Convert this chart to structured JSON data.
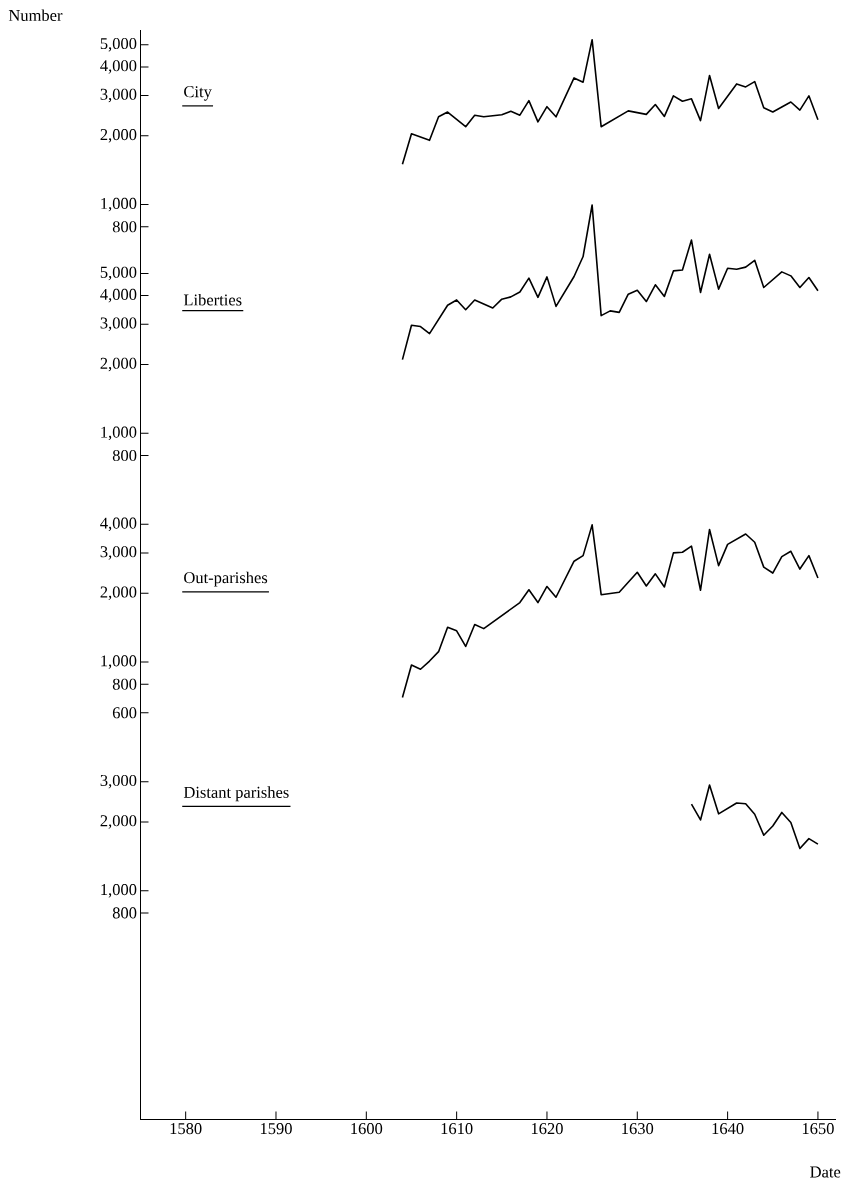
{
  "chart_data": [
    {
      "type": "line",
      "ylabel": "Number",
      "xlim": [
        1575,
        1652
      ],
      "ylim": [
        0.1,
        5800
      ],
      "log": "y",
      "tick_labels": "y",
      "line_style": "solid",
      "yticks": [
        {
          "value": 5000,
          "label": "5,000"
        },
        {
          "value": 4000,
          "label": "4,000"
        },
        {
          "value": 3000,
          "label": "3,000"
        },
        {
          "value": 2000,
          "label": "2,000"
        },
        {
          "value": 1000,
          "label": "1,000"
        },
        {
          "value": 800,
          "label": "800"
        }
      ],
      "x": [
        1604,
        1605,
        1607,
        1608,
        1609,
        1611,
        1612,
        1613,
        1615,
        1616,
        1617,
        1618,
        1619,
        1620,
        1621,
        1623,
        1624,
        1625,
        1626,
        1629,
        1631,
        1632,
        1633,
        1634,
        1635,
        1636,
        1637,
        1638,
        1639,
        1641,
        1642,
        1643,
        1644,
        1645,
        1647,
        1648,
        1649,
        1650
      ],
      "series": [
        {
          "name": "City",
          "color": "#000000",
          "values": [
            1500,
            2040,
            1910,
            2420,
            2540,
            2190,
            2460,
            2420,
            2470,
            2560,
            2460,
            2850,
            2300,
            2680,
            2420,
            3580,
            3430,
            5260,
            2190,
            2570,
            2480,
            2740,
            2430,
            2990,
            2830,
            2900,
            2330,
            3670,
            2630,
            3370,
            3270,
            3450,
            2650,
            2540,
            2810,
            2590,
            2990,
            2350
          ]
        }
      ]
    },
    {
      "type": "line",
      "xlim": [
        1575,
        1652
      ],
      "ylim": [
        1,
        58000
      ],
      "log": "y",
      "tick_labels": "y",
      "line_style": "solid",
      "yticks": [
        {
          "value": 5000,
          "label": "5,000"
        },
        {
          "value": 4000,
          "label": "4,000"
        },
        {
          "value": 3000,
          "label": "3,000"
        },
        {
          "value": 2000,
          "label": "2,000"
        },
        {
          "value": 1000,
          "label": "1,000"
        },
        {
          "value": 800,
          "label": "800"
        }
      ],
      "x": [
        1604,
        1605,
        1606,
        1607,
        1609,
        1610,
        1611,
        1612,
        1614,
        1615,
        1616,
        1617,
        1618,
        1619,
        1620,
        1621,
        1623,
        1624,
        1625,
        1626,
        1627,
        1628,
        1629,
        1630,
        1631,
        1632,
        1633,
        1634,
        1635,
        1636,
        1637,
        1638,
        1639,
        1640,
        1641,
        1642,
        1643,
        1644,
        1646,
        1647,
        1648,
        1649,
        1650
      ],
      "series": [
        {
          "name": "Liberties",
          "color": "#000000",
          "values": [
            2100,
            2970,
            2930,
            2730,
            3630,
            3830,
            3470,
            3830,
            3530,
            3860,
            3950,
            4150,
            4770,
            3930,
            4830,
            3590,
            4850,
            5930,
            9960,
            3270,
            3430,
            3380,
            4060,
            4220,
            3770,
            4460,
            3970,
            5130,
            5180,
            7000,
            4130,
            6070,
            4270,
            5270,
            5220,
            5330,
            5710,
            4340,
            5080,
            4880,
            4340,
            4800,
            4200
          ]
        }
      ]
    },
    {
      "type": "line",
      "xlim": [
        1575,
        1652
      ],
      "ylim": [
        10,
        580000
      ],
      "log": "y",
      "tick_labels": "y",
      "line_style": "solid",
      "yticks": [
        {
          "value": 4000,
          "label": "4,000"
        },
        {
          "value": 3000,
          "label": "3,000"
        },
        {
          "value": 2000,
          "label": "2,000"
        },
        {
          "value": 1000,
          "label": "1,000"
        },
        {
          "value": 800,
          "label": "800"
        },
        {
          "value": 600,
          "label": "600"
        }
      ],
      "x": [
        1604,
        1605,
        1606,
        1607,
        1608,
        1609,
        1610,
        1611,
        1612,
        1613,
        1617,
        1618,
        1619,
        1620,
        1621,
        1623,
        1624,
        1625,
        1626,
        1628,
        1630,
        1631,
        1632,
        1633,
        1634,
        1635,
        1636,
        1637,
        1638,
        1639,
        1640,
        1642,
        1643,
        1644,
        1645,
        1646,
        1647,
        1648,
        1649,
        1650
      ],
      "series": [
        {
          "name": "Out-parishes",
          "color": "#000000",
          "values": [
            700,
            970,
            930,
            1010,
            1110,
            1420,
            1370,
            1170,
            1460,
            1400,
            1820,
            2070,
            1820,
            2140,
            1920,
            2760,
            2920,
            3980,
            1970,
            2020,
            2470,
            2150,
            2430,
            2130,
            3000,
            3020,
            3210,
            2060,
            3800,
            2640,
            3270,
            3630,
            3340,
            2600,
            2450,
            2890,
            3050,
            2550,
            2920,
            2330
          ]
        }
      ]
    },
    {
      "type": "line",
      "xlabel": "Date",
      "xlim": [
        1575,
        1652
      ],
      "ylim": [
        100,
        5800000
      ],
      "log": "y",
      "line_style": "solid",
      "xticks": [
        1580,
        1590,
        1600,
        1610,
        1620,
        1630,
        1640,
        1650
      ],
      "yticks": [
        {
          "value": 3000,
          "label": "3,000"
        },
        {
          "value": 2000,
          "label": "2,000"
        },
        {
          "value": 1000,
          "label": "1,000"
        },
        {
          "value": 800,
          "label": "800"
        }
      ],
      "x": [
        1636,
        1637,
        1638,
        1639,
        1641,
        1642,
        1643,
        1644,
        1645,
        1646,
        1647,
        1648,
        1649,
        1650
      ],
      "series": [
        {
          "name": "Distant parishes",
          "color": "#000000",
          "values": [
            2390,
            2040,
            2900,
            2170,
            2420,
            2400,
            2160,
            1750,
            1920,
            2200,
            1990,
            1530,
            1690,
            1600
          ]
        }
      ]
    }
  ]
}
